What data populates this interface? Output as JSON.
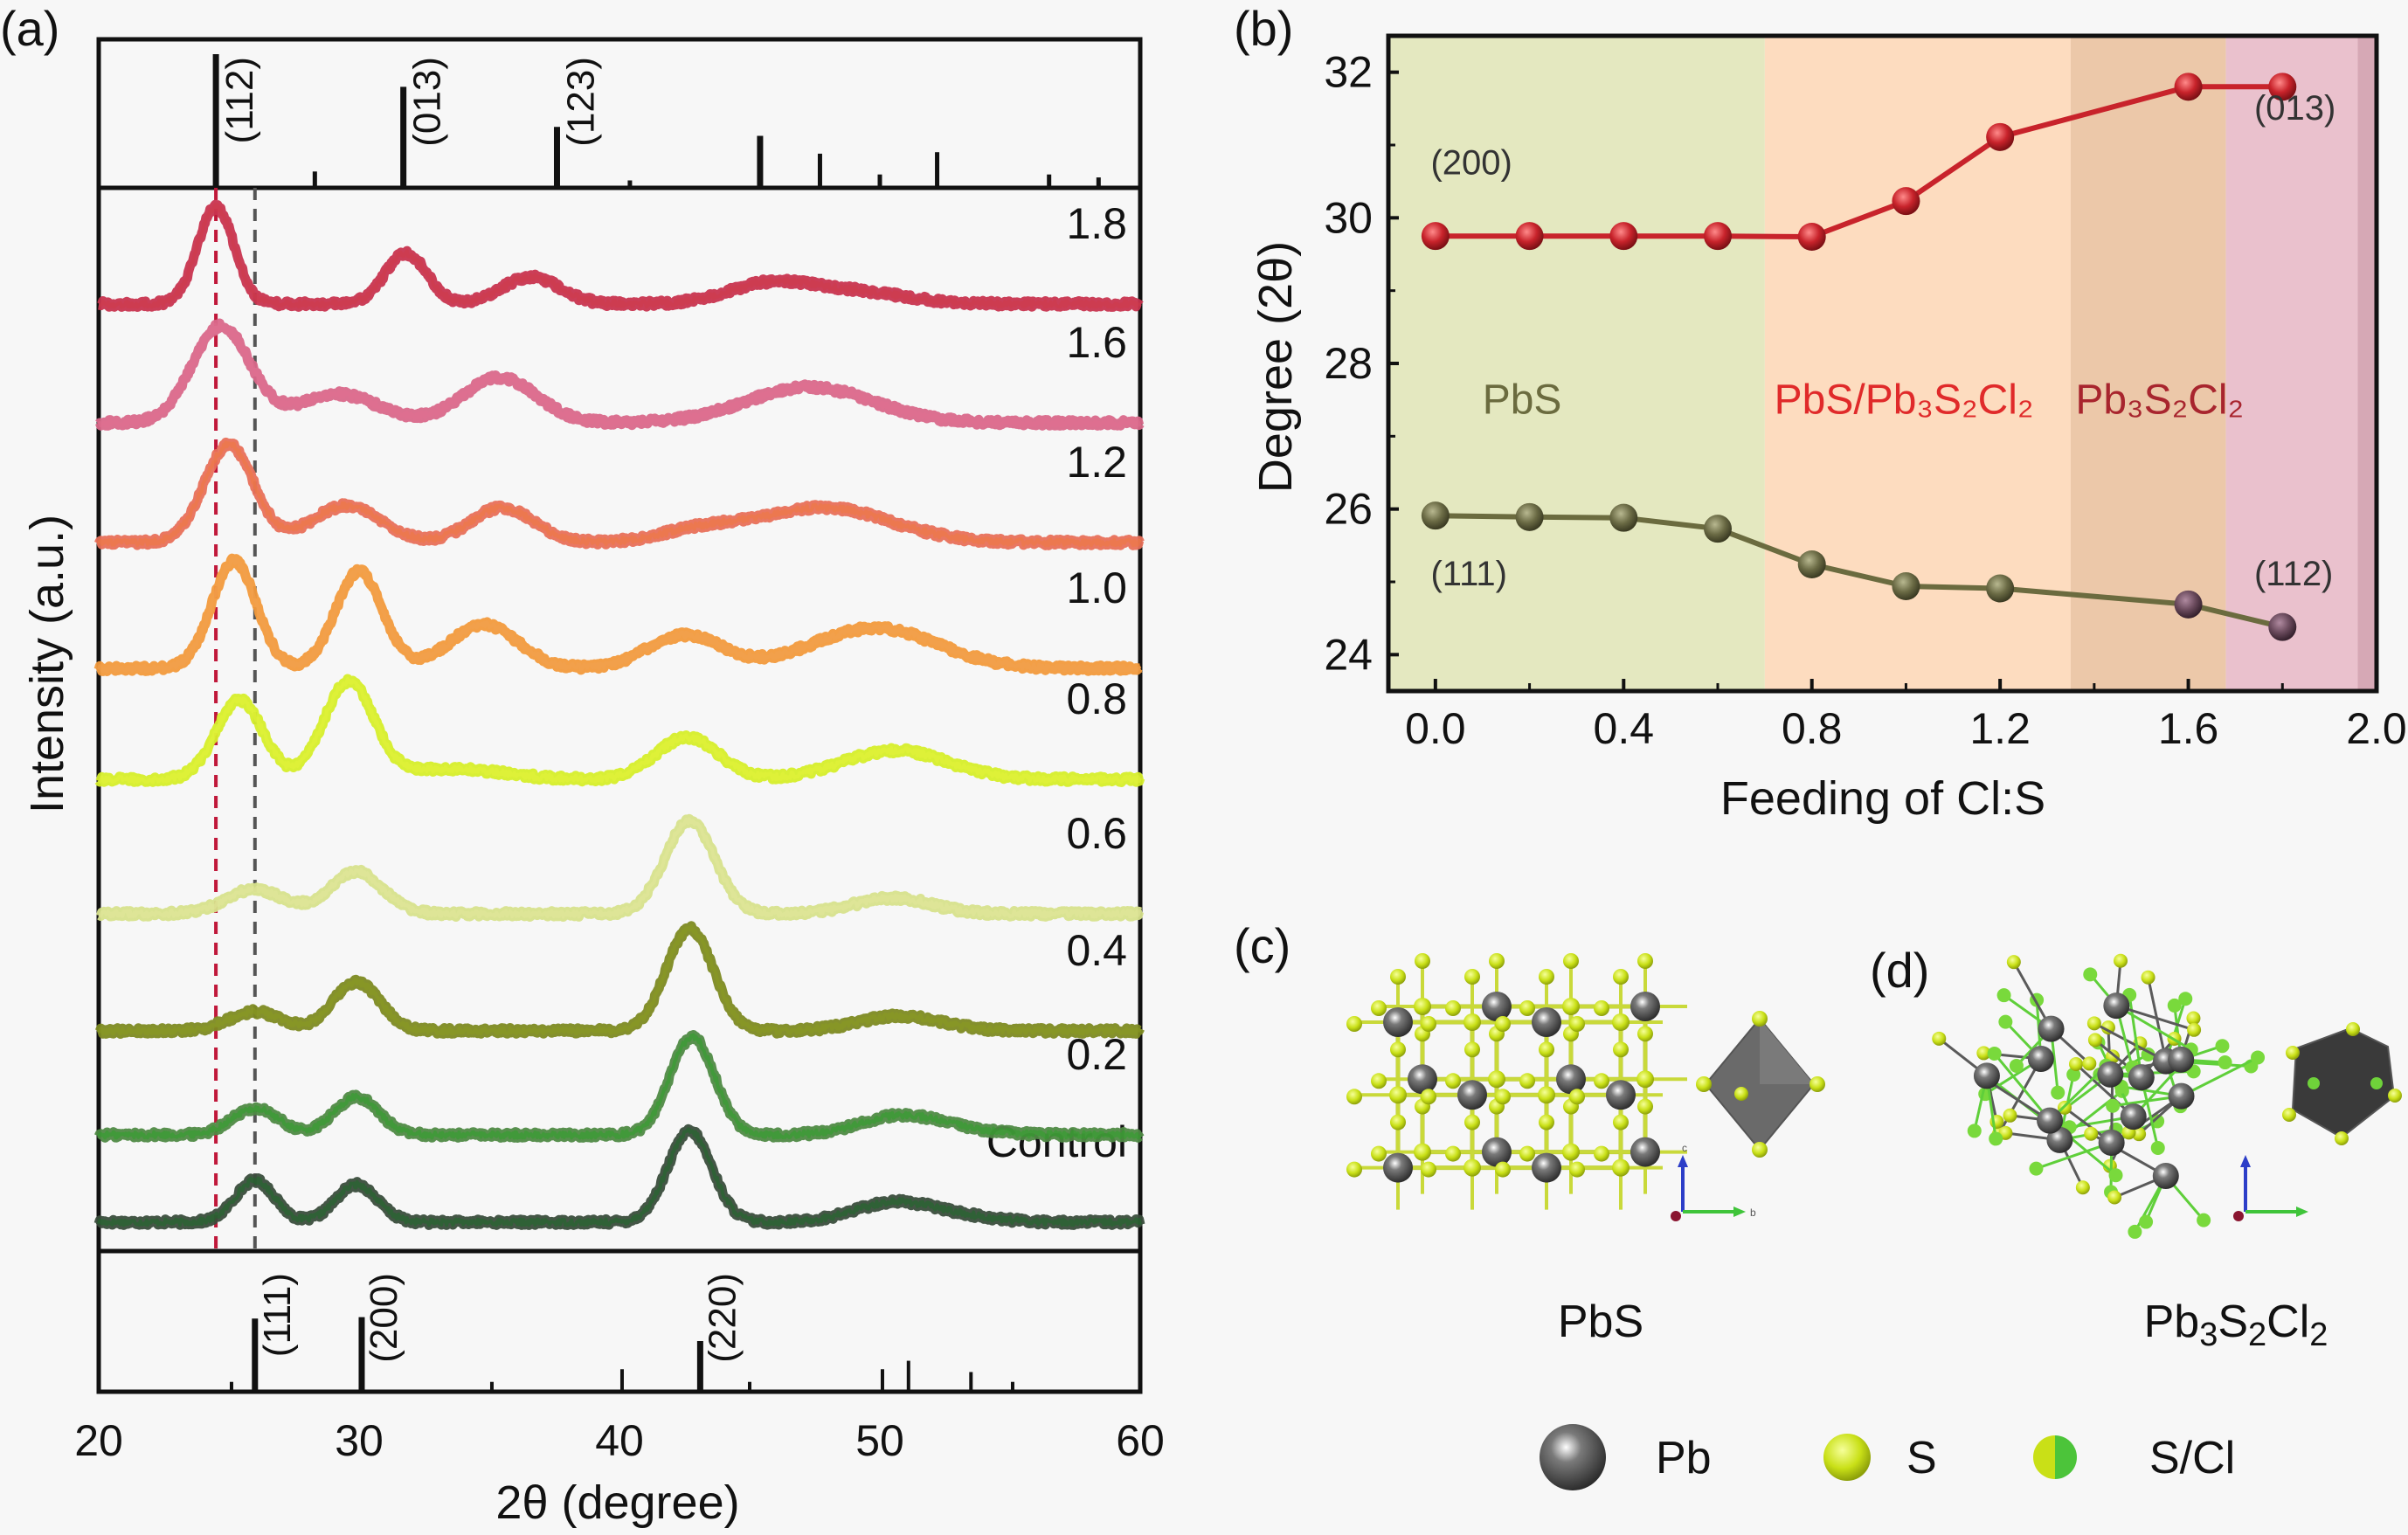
{
  "figure": {
    "panel_labels": {
      "a": "(a)",
      "b": "(b)",
      "c": "(c)",
      "d": "(d)"
    }
  },
  "chart_data": [
    {
      "id": "a",
      "type": "line",
      "title": "",
      "xlabel": "2θ (degree)",
      "ylabel": "Intensity (a.u.)",
      "xlim": [
        20,
        60
      ],
      "xticks": [
        20,
        30,
        40,
        50,
        60
      ],
      "ylim": [
        0,
        1217
      ],
      "grid": false,
      "reference_lines": [
        {
          "x": 24.5,
          "color": "#c0183a",
          "style": "dashed"
        },
        {
          "x": 26.0,
          "color": "#555555",
          "style": "dashed"
        }
      ],
      "series": [
        {
          "name": "Control",
          "color": "#3a4d3c",
          "color2": "#1f6b2a",
          "offset": 33,
          "peaks": [
            [
              26.0,
              48,
              0.75
            ],
            [
              29.9,
              43,
              0.8
            ],
            [
              42.7,
              104,
              0.85
            ],
            [
              50.5,
              22,
              1.5
            ],
            [
              53.0,
              6,
              1.5
            ]
          ]
        },
        {
          "name": "0.2",
          "color": "#4f8a45",
          "color2": "#2fa02a",
          "offset": 133,
          "peaks": [
            [
              26.0,
              30,
              0.9
            ],
            [
              29.9,
              43,
              0.85
            ],
            [
              42.8,
              112,
              0.85
            ],
            [
              50.7,
              21,
              1.5
            ],
            [
              53.0,
              5,
              1.5
            ]
          ]
        },
        {
          "name": "0.4",
          "color": "#7d8a22",
          "color2": "#8a9a20",
          "offset": 252,
          "peaks": [
            [
              26.0,
              22,
              1.0
            ],
            [
              29.9,
              56,
              0.9
            ],
            [
              42.7,
              117,
              0.9
            ],
            [
              50.8,
              17,
              1.6
            ]
          ]
        },
        {
          "name": "0.6",
          "color": "#d7e28c",
          "color2": "#e1e89a",
          "offset": 386,
          "peaks": [
            [
              26.0,
              28,
              1.1
            ],
            [
              29.9,
              48,
              1.0
            ],
            [
              42.7,
              107,
              0.95
            ],
            [
              50.5,
              18,
              1.5
            ]
          ]
        },
        {
          "name": "0.8",
          "color": "#d6ee2a",
          "color2": "#e4f23a",
          "offset": 540,
          "peaks": [
            [
              25.4,
              91,
              0.9
            ],
            [
              29.6,
              111,
              0.95
            ],
            [
              33.5,
              12,
              2.0
            ],
            [
              42.6,
              48,
              1.2
            ],
            [
              50.6,
              33,
              2.0
            ]
          ]
        },
        {
          "name": "1.0",
          "color": "#f29a3c",
          "color2": "#f0a050",
          "offset": 667,
          "peaks": [
            [
              25.2,
              123,
              0.85
            ],
            [
              30.0,
              111,
              0.9
            ],
            [
              34.8,
              50,
              1.3
            ],
            [
              42.5,
              38,
              1.4
            ],
            [
              49.8,
              46,
              2.4
            ]
          ]
        },
        {
          "name": "1.2",
          "color": "#e8705a",
          "color2": "#ef7a40",
          "offset": 811,
          "peaks": [
            [
              25.0,
              112,
              0.95
            ],
            [
              29.5,
              42,
              1.3
            ],
            [
              35.5,
              40,
              1.2
            ],
            [
              47.8,
              40,
              2.6
            ],
            [
              43.0,
              12,
              1.5
            ]
          ]
        },
        {
          "name": "1.6",
          "color": "#d9688a",
          "color2": "#e07090",
          "offset": 948,
          "peaks": [
            [
              24.7,
              111,
              1.1
            ],
            [
              29.2,
              33,
              1.5
            ],
            [
              35.4,
              52,
              1.4
            ],
            [
              47.3,
              41,
              2.4
            ]
          ]
        },
        {
          "name": "1.8",
          "color": "#c8344f",
          "color2": "#d03a4a",
          "offset": 1084,
          "peaks": [
            [
              24.5,
              111,
              0.7
            ],
            [
              31.8,
              58,
              0.8
            ],
            [
              36.6,
              31,
              1.1
            ],
            [
              45.7,
              22,
              1.6
            ],
            [
              49.0,
              14,
              2.0
            ]
          ]
        }
      ],
      "reference_top": {
        "phase": "Pb3S2Cl2",
        "ylim": [
          0,
          100
        ],
        "sticks": [
          [
            24.5,
            90
          ],
          [
            28.3,
            11
          ],
          [
            31.7,
            68
          ],
          [
            37.6,
            41
          ],
          [
            40.4,
            5
          ],
          [
            45.4,
            35
          ],
          [
            47.7,
            23
          ],
          [
            50.0,
            9
          ],
          [
            52.2,
            24
          ],
          [
            56.5,
            9
          ],
          [
            58.4,
            7
          ]
        ],
        "labels": [
          {
            "x": 24.5,
            "text": "(112)"
          },
          {
            "x": 31.7,
            "text": "(013)"
          },
          {
            "x": 37.6,
            "text": "(123)"
          }
        ]
      },
      "reference_bottom": {
        "phase": "PbS",
        "ylim": [
          0,
          100
        ],
        "sticks": [
          [
            25.1,
            7
          ],
          [
            26.0,
            52
          ],
          [
            30.1,
            53
          ],
          [
            35.1,
            7
          ],
          [
            40.1,
            16
          ],
          [
            43.1,
            36
          ],
          [
            45.0,
            7
          ],
          [
            50.1,
            16
          ],
          [
            51.1,
            22
          ],
          [
            53.5,
            14
          ],
          [
            55.1,
            7
          ]
        ],
        "labels": [
          {
            "x": 26.0,
            "text": "(111)"
          },
          {
            "x": 30.1,
            "text": "(200)"
          },
          {
            "x": 43.1,
            "text": "(220)"
          }
        ]
      }
    },
    {
      "id": "b",
      "type": "line",
      "title": "",
      "xlabel": "Feeding of Cl:S",
      "ylabel": "Degree (2θ)",
      "xlim": [
        -0.1,
        2.0
      ],
      "xticks": [
        "0.0",
        "0.4",
        "0.8",
        "1.2",
        "1.6",
        "2.0"
      ],
      "ylim": [
        23.5,
        32.5
      ],
      "yticks": [
        24,
        26,
        28,
        30,
        32
      ],
      "grid": false,
      "regions": [
        {
          "from": -0.1,
          "to": 0.7,
          "color": "#e4e8c0",
          "label": "PbS",
          "label_color": "#6b6b3f",
          "label_x": 0.1,
          "label_y": 27.5
        },
        {
          "from": 0.7,
          "to": 1.35,
          "color": "#fddcbf",
          "label": "PbS/Pb₃S₂Cl₂",
          "label_color": "#e02a2a",
          "label_x": 0.72,
          "label_y": 27.5
        },
        {
          "from": 1.35,
          "to": 1.68,
          "color": "#ecc8a9",
          "label": "",
          "label_color": "",
          "label_x": 0,
          "label_y": 0
        },
        {
          "from": 1.68,
          "to": 1.96,
          "color": "#eac1cd",
          "label": "Pb₃S₂Cl₂",
          "label_color": "#a8252e",
          "label_x": 1.36,
          "label_y": 27.5
        },
        {
          "from": 1.96,
          "to": 2.0,
          "color": "#d6a8b5",
          "label": "",
          "label_color": "",
          "label_x": 0,
          "label_y": 0
        }
      ],
      "x": [
        0.0,
        0.2,
        0.4,
        0.6,
        0.8,
        1.0,
        1.2,
        1.6,
        1.8
      ],
      "series": [
        {
          "name": "(200)/(013)",
          "color": "#c8232b",
          "y": [
            29.75,
            29.75,
            29.75,
            29.75,
            29.74,
            30.23,
            31.11,
            31.8,
            31.8
          ],
          "point_colors": [
            "#c8232b",
            "#c8232b",
            "#c8232b",
            "#c8232b",
            "#c8232b",
            "#c8232b",
            "#c8232b",
            "#c8232b",
            "#c8232b"
          ]
        },
        {
          "name": "(111)/(112)",
          "color": "#6b6b3f",
          "y": [
            25.91,
            25.89,
            25.88,
            25.73,
            25.24,
            24.94,
            24.91,
            24.69,
            24.38
          ],
          "point_colors": [
            "#6b6b45",
            "#6b6b45",
            "#6b6b45",
            "#6b6b45",
            "#6b6b45",
            "#6b6b45",
            "#7a6640",
            "#6e4a5c",
            "#5f3f52"
          ]
        }
      ],
      "annotations": [
        {
          "text": "(200)",
          "x": -0.01,
          "y": 30.6,
          "color": "#333"
        },
        {
          "text": "(013)",
          "x": 1.74,
          "y": 31.35,
          "color": "#333"
        },
        {
          "text": "(111)",
          "x": -0.01,
          "y": 24.95,
          "color": "#333"
        },
        {
          "text": "(112)",
          "x": 1.74,
          "y": 24.95,
          "color": "#333"
        }
      ]
    }
  ],
  "structures": {
    "c": {
      "name": "PbS"
    },
    "d": {
      "name": "Pb₃S₂Cl₂"
    },
    "axes_labels": {
      "c": "c",
      "b": "b"
    },
    "legend": [
      {
        "label": "Pb",
        "color": "#666666"
      },
      {
        "label": "S",
        "color": "#c9e017"
      },
      {
        "label": "S/Cl",
        "color": "#7fd33a"
      }
    ]
  }
}
